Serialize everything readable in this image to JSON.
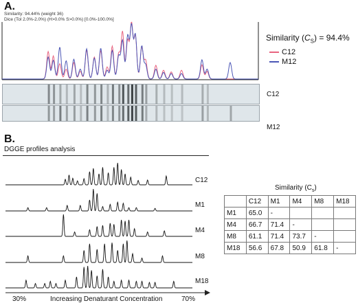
{
  "panelA": {
    "label": "A.",
    "header_line1": "Similarity: 94.44% (weight 36)",
    "header_line2": "Dice (Tol 2.0%-2.0%) (H>0.0% S>0.0%) [0.0%-100.0%]",
    "similarity_prefix": "Similarity (",
    "similarity_var": "C",
    "similarity_sub": "S",
    "similarity_suffix": ") = 94.4%",
    "legend": [
      {
        "name": "C12",
        "color": "#e8637f"
      },
      {
        "name": "M12",
        "color": "#4a55b5"
      }
    ],
    "gel_labels": [
      "C12",
      "M12"
    ]
  },
  "panelB": {
    "label": "B.",
    "title": "DGGE profiles analysis",
    "profile_labels": [
      "C12",
      "M1",
      "M4",
      "M8",
      "M18"
    ],
    "axis_left": "30%",
    "axis_center": "Increasing Denaturant Concentration",
    "axis_right": "70%"
  },
  "chart_data": [
    {
      "type": "line",
      "description_source": "panel A densitometric overlay",
      "series": [
        {
          "name": "C12",
          "color": "#e8637f",
          "peaks": [
            [
              0.18,
              0.5
            ],
            [
              0.2,
              0.42
            ],
            [
              0.225,
              0.28
            ],
            [
              0.25,
              0.18
            ],
            [
              0.28,
              0.3
            ],
            [
              0.305,
              0.14
            ],
            [
              0.33,
              0.52
            ],
            [
              0.36,
              0.4
            ],
            [
              0.385,
              0.52
            ],
            [
              0.41,
              0.22
            ],
            [
              0.43,
              0.6
            ],
            [
              0.455,
              0.46
            ],
            [
              0.47,
              0.86
            ],
            [
              0.49,
              0.7
            ],
            [
              0.505,
              1.0
            ],
            [
              0.52,
              0.78
            ],
            [
              0.545,
              0.58
            ],
            [
              0.56,
              0.34
            ],
            [
              0.6,
              0.25
            ],
            [
              0.63,
              0.16
            ],
            [
              0.66,
              0.13
            ],
            [
              0.7,
              0.16
            ],
            [
              0.78,
              0.26
            ],
            [
              0.8,
              0.14
            ]
          ]
        },
        {
          "name": "M12",
          "color": "#4a55b5",
          "peaks": [
            [
              0.18,
              0.4
            ],
            [
              0.2,
              0.34
            ],
            [
              0.225,
              0.58
            ],
            [
              0.25,
              0.33
            ],
            [
              0.28,
              0.36
            ],
            [
              0.305,
              0.18
            ],
            [
              0.33,
              0.55
            ],
            [
              0.36,
              0.38
            ],
            [
              0.385,
              0.56
            ],
            [
              0.41,
              0.16
            ],
            [
              0.43,
              0.52
            ],
            [
              0.455,
              0.42
            ],
            [
              0.47,
              0.7
            ],
            [
              0.49,
              0.78
            ],
            [
              0.505,
              0.97
            ],
            [
              0.52,
              0.8
            ],
            [
              0.545,
              0.6
            ],
            [
              0.56,
              0.26
            ],
            [
              0.6,
              0.18
            ],
            [
              0.63,
              0.12
            ],
            [
              0.66,
              0.1
            ],
            [
              0.7,
              0.1
            ],
            [
              0.78,
              0.35
            ],
            [
              0.8,
              0.18
            ],
            [
              0.89,
              0.3
            ]
          ]
        }
      ],
      "similarity_Cs_percent": 94.4
    },
    {
      "type": "line",
      "description_source": "panel B DGGE profiles",
      "series": [
        {
          "name": "C12",
          "peaks": [
            [
              0.32,
              0.25
            ],
            [
              0.34,
              0.45
            ],
            [
              0.36,
              0.3
            ],
            [
              0.385,
              0.18
            ],
            [
              0.42,
              0.28
            ],
            [
              0.45,
              0.6
            ],
            [
              0.47,
              0.75
            ],
            [
              0.5,
              0.5
            ],
            [
              0.52,
              0.8
            ],
            [
              0.55,
              0.55
            ],
            [
              0.58,
              0.8
            ],
            [
              0.6,
              1.0
            ],
            [
              0.62,
              0.7
            ],
            [
              0.64,
              0.5
            ],
            [
              0.67,
              0.35
            ],
            [
              0.71,
              0.2
            ],
            [
              0.76,
              0.22
            ],
            [
              0.86,
              0.4
            ]
          ]
        },
        {
          "name": "M1",
          "peaks": [
            [
              0.12,
              0.15
            ],
            [
              0.22,
              0.15
            ],
            [
              0.33,
              0.25
            ],
            [
              0.4,
              0.25
            ],
            [
              0.45,
              0.5
            ],
            [
              0.47,
              1.0
            ],
            [
              0.49,
              0.8
            ],
            [
              0.52,
              0.2
            ],
            [
              0.56,
              0.3
            ],
            [
              0.6,
              0.4
            ],
            [
              0.63,
              0.35
            ],
            [
              0.66,
              0.15
            ],
            [
              0.7,
              0.15
            ],
            [
              0.8,
              0.12
            ]
          ]
        },
        {
          "name": "M4",
          "peaks": [
            [
              0.31,
              1.0
            ],
            [
              0.37,
              0.2
            ],
            [
              0.45,
              0.3
            ],
            [
              0.49,
              0.45
            ],
            [
              0.52,
              0.5
            ],
            [
              0.56,
              0.6
            ],
            [
              0.58,
              0.55
            ],
            [
              0.62,
              0.75
            ],
            [
              0.64,
              0.7
            ],
            [
              0.66,
              0.75
            ],
            [
              0.69,
              0.35
            ],
            [
              0.76,
              0.2
            ],
            [
              0.85,
              0.25
            ]
          ]
        },
        {
          "name": "M8",
          "peaks": [
            [
              0.12,
              0.3
            ],
            [
              0.31,
              0.3
            ],
            [
              0.42,
              0.55
            ],
            [
              0.45,
              0.85
            ],
            [
              0.49,
              0.6
            ],
            [
              0.53,
              0.85
            ],
            [
              0.57,
              0.9
            ],
            [
              0.6,
              0.55
            ],
            [
              0.63,
              0.85
            ],
            [
              0.65,
              1.0
            ],
            [
              0.68,
              0.4
            ],
            [
              0.73,
              0.2
            ],
            [
              0.84,
              0.3
            ]
          ]
        },
        {
          "name": "M18",
          "peaks": [
            [
              0.11,
              0.35
            ],
            [
              0.16,
              0.2
            ],
            [
              0.21,
              0.2
            ],
            [
              0.24,
              0.3
            ],
            [
              0.27,
              0.2
            ],
            [
              0.32,
              0.35
            ],
            [
              0.38,
              0.5
            ],
            [
              0.42,
              0.95
            ],
            [
              0.44,
              1.0
            ],
            [
              0.46,
              0.8
            ],
            [
              0.49,
              0.55
            ],
            [
              0.52,
              0.85
            ],
            [
              0.55,
              0.5
            ],
            [
              0.58,
              0.3
            ],
            [
              0.62,
              0.35
            ],
            [
              0.66,
              0.35
            ],
            [
              0.7,
              0.3
            ],
            [
              0.73,
              0.3
            ],
            [
              0.77,
              0.25
            ],
            [
              0.8,
              0.25
            ],
            [
              0.9,
              0.3
            ]
          ]
        }
      ]
    },
    {
      "type": "table",
      "title_prefix": "Similarity (C",
      "title_sub": "s",
      "title_suffix": ")",
      "columns": [
        "",
        "C12",
        "M1",
        "M4",
        "M8",
        "M18"
      ],
      "rows": [
        [
          "M1",
          "65.0",
          "-",
          "",
          "",
          ""
        ],
        [
          "M4",
          "66.7",
          "71.4",
          "-",
          "",
          ""
        ],
        [
          "M8",
          "61.1",
          "71.4",
          "73.7",
          "-",
          ""
        ],
        [
          "M18",
          "56.6",
          "67.8",
          "50.9",
          "61.8",
          "-"
        ]
      ]
    }
  ]
}
